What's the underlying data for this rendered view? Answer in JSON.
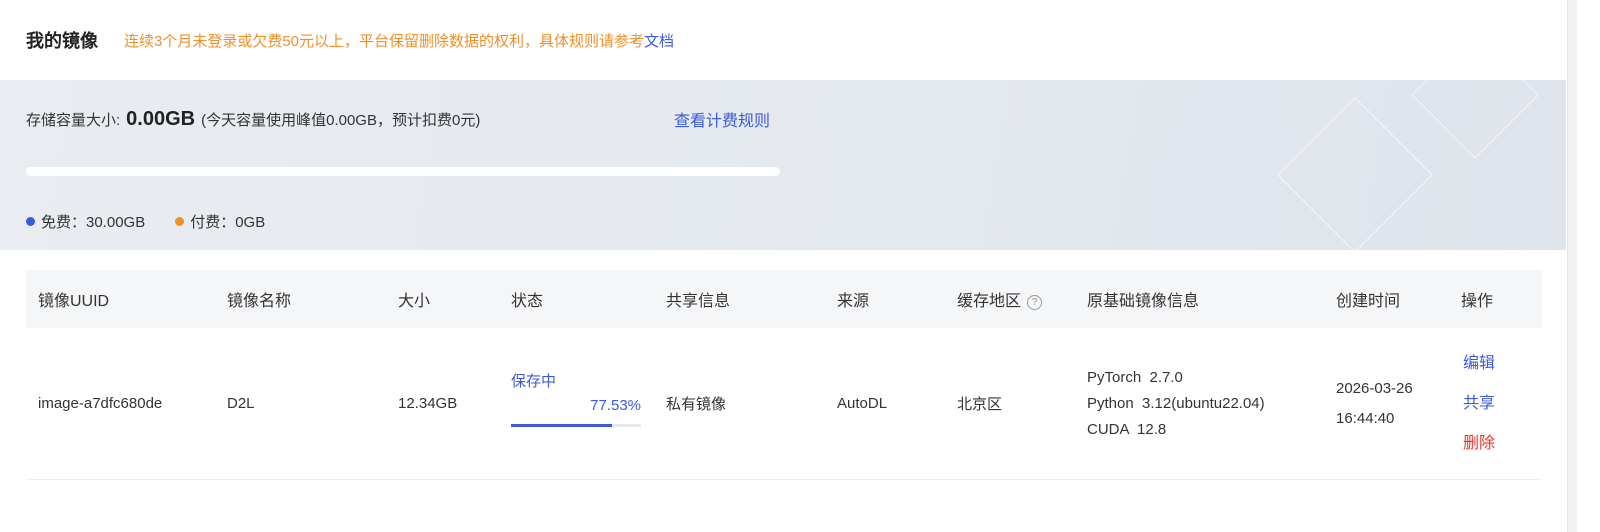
{
  "header": {
    "title": "我的镜像",
    "notice": "连续3个月未登录或欠费50元以上，平台保留删除数据的权利，具体规则请参考",
    "doc_link": "文档"
  },
  "storage": {
    "label": "存储容量大小:",
    "size": "0.00GB",
    "detail": "(今天容量使用峰值0.00GB，预计扣费0元)",
    "rule_link": "查看计费规则",
    "usage_percent": 0,
    "legend": [
      {
        "label": "免费：30.00GB",
        "color": "#3b5bdb"
      },
      {
        "label": "付费：0GB",
        "color": "#f0902a"
      }
    ]
  },
  "table": {
    "columns": [
      "镜像UUID",
      "镜像名称",
      "大小",
      "状态",
      "共享信息",
      "来源",
      "缓存地区",
      "原基础镜像信息",
      "创建时间",
      "操作"
    ],
    "rows": [
      {
        "uuid": "image-a7dfc680de",
        "name": "D2L",
        "size": "12.34GB",
        "status": "保存中",
        "progress": "77.53%",
        "progress_value": 77.53,
        "share": "私有镜像",
        "source": "AutoDL",
        "region": "北京区",
        "base": [
          "PyTorch  2.7.0",
          "Python  3.12(ubuntu22.04)",
          "CUDA  12.8"
        ],
        "created_date": "2026-03-26",
        "created_time": "16:44:40",
        "actions": {
          "edit": "编辑",
          "share": "共享",
          "delete": "删除"
        }
      }
    ]
  }
}
